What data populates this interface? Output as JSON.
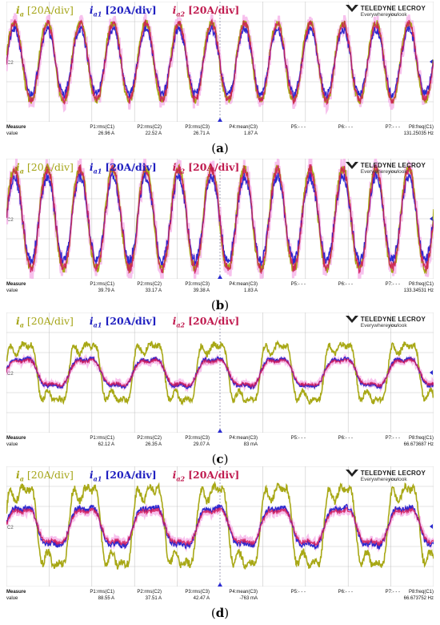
{
  "legend": {
    "ia": {
      "var": "i",
      "sub": "a",
      "unit": "[20A/div]"
    },
    "ia1": {
      "var": "i",
      "sub": "a1",
      "unit": "[20A/div]"
    },
    "ia2": {
      "var": "i",
      "sub": "a2",
      "unit": "[20A/div]"
    }
  },
  "logo": {
    "brand": "TELEDYNE LECROY",
    "tagline_pre": "Everywhere",
    "tagline_bold": "you",
    "tagline_post": "look"
  },
  "colors": {
    "ia": "#a8a816",
    "ia1": "#2a2ad0",
    "ia2": "#d01858",
    "ia2_glow": "#f4a6e6",
    "grid": "#c8c8c8",
    "marker": "#2a2ad0"
  },
  "measure_header": {
    "title": "Measure",
    "value": "value"
  },
  "chart_data": [
    {
      "type": "line",
      "caption_label": "a",
      "fundamental_periods_on_screen": 13,
      "amplitude_div": {
        "ia": 2.1,
        "ia1": 1.7,
        "ia2": 2.0
      },
      "harmonic_distortion": 0.05,
      "measurements": [
        {
          "name": "P1:rms(C1)",
          "value": "26.96 A"
        },
        {
          "name": "P2:rms(C2)",
          "value": "22.52 A"
        },
        {
          "name": "P3:rms(C3)",
          "value": "26.71 A"
        },
        {
          "name": "P4:mean(C3)",
          "value": "1.87 A"
        },
        {
          "name": "P5:- - -",
          "value": ""
        },
        {
          "name": "P6:- - -",
          "value": ""
        },
        {
          "name": "P7:- - -",
          "value": ""
        },
        {
          "name": "P8:freq(C1)",
          "value": "131.25035 Hz"
        }
      ]
    },
    {
      "type": "line",
      "caption_label": "b",
      "fundamental_periods_on_screen": 13,
      "amplitude_div": {
        "ia": 2.7,
        "ia1": 2.2,
        "ia2": 2.6
      },
      "harmonic_distortion": 0.04,
      "measurements": [
        {
          "name": "P1:rms(C1)",
          "value": "39.79 A"
        },
        {
          "name": "P2:rms(C2)",
          "value": "33.17 A"
        },
        {
          "name": "P3:rms(C3)",
          "value": "39.38 A"
        },
        {
          "name": "P4:mean(C3)",
          "value": "1.83 A"
        },
        {
          "name": "P5:- - -",
          "value": ""
        },
        {
          "name": "P6:- - -",
          "value": ""
        },
        {
          "name": "P7:- - -",
          "value": ""
        },
        {
          "name": "P8:freq(C1)",
          "value": "133.34531 Hz"
        }
      ]
    },
    {
      "type": "line",
      "caption_label": "c",
      "fundamental_periods_on_screen": 6.7,
      "amplitude_div": {
        "ia": 2.1,
        "ia1": 1.05,
        "ia2": 0.95
      },
      "harmonic_distortion": 0.3,
      "measurements": [
        {
          "name": "P1:rms(C1)",
          "value": "62.12 A"
        },
        {
          "name": "P2:rms(C2)",
          "value": "26.35 A"
        },
        {
          "name": "P3:rms(C3)",
          "value": "29.07 A"
        },
        {
          "name": "P4:mean(C3)",
          "value": "83 mA"
        },
        {
          "name": "P5:- - -",
          "value": ""
        },
        {
          "name": "P6:- - -",
          "value": ""
        },
        {
          "name": "P7:- - -",
          "value": ""
        },
        {
          "name": "P8:freq(C1)",
          "value": "66.673687 Hz"
        }
      ]
    },
    {
      "type": "line",
      "caption_label": "d",
      "fundamental_periods_on_screen": 6.7,
      "amplitude_div": {
        "ia": 2.9,
        "ia1": 1.45,
        "ia2": 1.25
      },
      "harmonic_distortion": 0.3,
      "measurements": [
        {
          "name": "P1:rms(C1)",
          "value": "88.55 A"
        },
        {
          "name": "P2:rms(C2)",
          "value": "37.51 A"
        },
        {
          "name": "P3:rms(C3)",
          "value": "42.47 A"
        },
        {
          "name": "P4:mean(C3)",
          "value": "-763 mA"
        },
        {
          "name": "P5:- - -",
          "value": ""
        },
        {
          "name": "P6:- - -",
          "value": ""
        },
        {
          "name": "P7:- - -",
          "value": ""
        },
        {
          "name": "P8:freq(C1)",
          "value": "66.673752 Hz"
        }
      ]
    }
  ]
}
